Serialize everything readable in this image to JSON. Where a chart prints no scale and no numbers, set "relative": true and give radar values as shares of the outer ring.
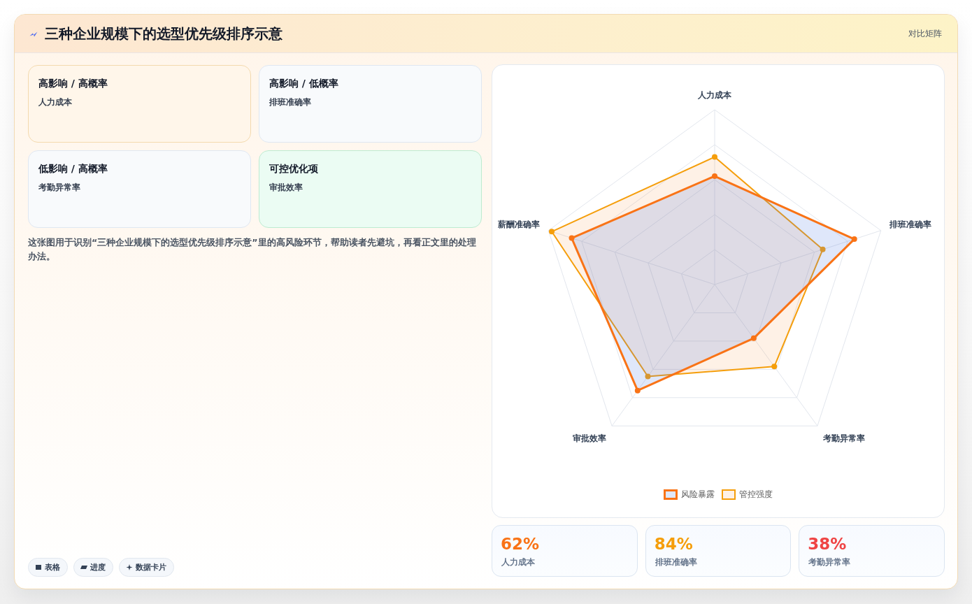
{
  "chart_data": [
    {
      "type": "other",
      "title": "三种企业规模下的选型优先级排序示意",
      "subtitle": "对比矩阵",
      "annotations": [
        "高影响 / 高概率",
        "人力成本",
        "高影响 / 低概率",
        "排班准确率",
        "低影响 / 高概率",
        "考勤异常率",
        "可控优化项",
        "审批效率",
        "这张图用于识别“三种企业规模下的选型优先级排序示意”里的高风险环节，帮助读者先避坑，再看正文里的处理办法。",
        "表格",
        "进度",
        "数据卡片"
      ]
    },
    {
      "type": "radar",
      "categories": [
        "人力成本",
        "排班准确率",
        "考勤异常率",
        "审批效率",
        "薪酬准确率"
      ],
      "relative": true,
      "grid": true,
      "legend": "bottom",
      "marker": "circle",
      "series": [
        {
          "name": "风险暴露",
          "color": "#f97316",
          "values": [
            0.62,
            0.84,
            0.38,
            0.75,
            0.86
          ]
        },
        {
          "name": "管控强度",
          "color": "#f59e0b",
          "values": [
            0.73,
            0.65,
            0.58,
            0.65,
            0.98
          ]
        }
      ]
    },
    {
      "type": "other",
      "annotations": [
        "62%",
        "人力成本",
        "84%",
        "排班准确率",
        "38%",
        "考勤异常率"
      ]
    }
  ]
}
